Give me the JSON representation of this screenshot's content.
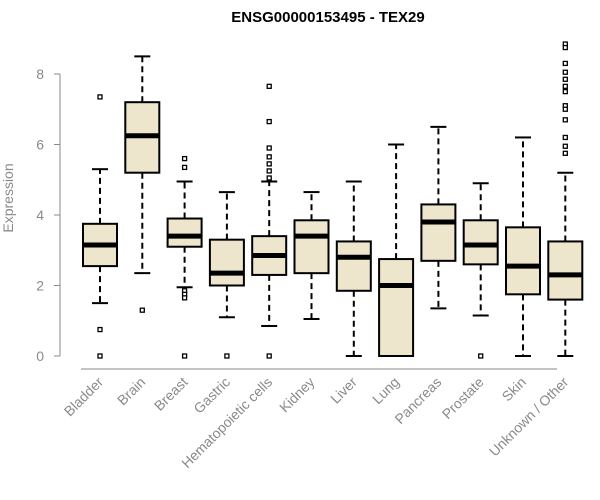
{
  "chart_data": {
    "type": "boxplot",
    "title": "ENSG00000153495 - TEX29",
    "xlabel": "",
    "ylabel": "Expression",
    "ylim": [
      0,
      9
    ],
    "yticks": [
      0,
      2,
      4,
      6,
      8
    ],
    "box_fill": "#ede6cc",
    "categories": [
      "Bladder",
      "Brain",
      "Breast",
      "Gastric",
      "Hematopoietic cells",
      "Kidney",
      "Liver",
      "Lung",
      "Pancreas",
      "Prostate",
      "Skin",
      "Unknown / Other"
    ],
    "boxes": [
      {
        "min": 1.5,
        "q1": 2.55,
        "median": 3.15,
        "q3": 3.75,
        "max": 5.3,
        "outliers": [
          7.35,
          0.75,
          0.0
        ]
      },
      {
        "min": 2.35,
        "q1": 5.2,
        "median": 6.25,
        "q3": 7.2,
        "max": 8.5,
        "outliers": [
          1.3
        ]
      },
      {
        "min": 1.95,
        "q1": 3.1,
        "median": 3.4,
        "q3": 3.9,
        "max": 4.95,
        "outliers": [
          5.6,
          5.35,
          1.85,
          1.75,
          1.65,
          0.0
        ]
      },
      {
        "min": 1.1,
        "q1": 2.0,
        "median": 2.35,
        "q3": 3.3,
        "max": 4.65,
        "outliers": [
          0.0
        ]
      },
      {
        "min": 0.85,
        "q1": 2.3,
        "median": 2.85,
        "q3": 3.4,
        "max": 4.95,
        "outliers": [
          7.65,
          6.65,
          5.9,
          5.65,
          5.45,
          5.25,
          5.05,
          0.0
        ]
      },
      {
        "min": 1.05,
        "q1": 2.35,
        "median": 3.4,
        "q3": 3.85,
        "max": 4.65,
        "outliers": []
      },
      {
        "min": 0.0,
        "q1": 1.85,
        "median": 2.8,
        "q3": 3.25,
        "max": 4.95,
        "outliers": []
      },
      {
        "min": 0.0,
        "q1": 0.0,
        "median": 2.0,
        "q3": 2.75,
        "max": 6.0,
        "outliers": []
      },
      {
        "min": 1.35,
        "q1": 2.7,
        "median": 3.8,
        "q3": 4.3,
        "max": 6.5,
        "outliers": []
      },
      {
        "min": 1.15,
        "q1": 2.6,
        "median": 3.15,
        "q3": 3.85,
        "max": 4.9,
        "outliers": [
          0.0
        ]
      },
      {
        "min": 0.0,
        "q1": 1.75,
        "median": 2.55,
        "q3": 3.65,
        "max": 6.2,
        "outliers": []
      },
      {
        "min": 0.0,
        "q1": 1.6,
        "median": 2.3,
        "q3": 3.25,
        "max": 5.2,
        "outliers": [
          8.85,
          8.75,
          8.3,
          8.05,
          7.85,
          7.65,
          7.5,
          7.1,
          7.0,
          6.7,
          6.2,
          5.95,
          5.75
        ]
      }
    ]
  }
}
